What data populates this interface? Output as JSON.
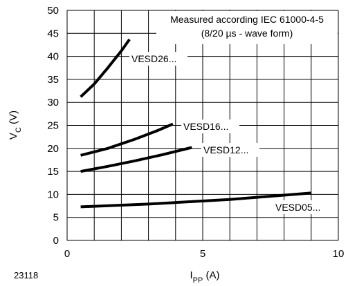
{
  "figure_id": "23118",
  "chart_data": {
    "type": "line",
    "annotation": [
      "Measured according IEC 61000-4-5",
      "(8/20 µs - wave form)"
    ],
    "xlabel": {
      "main": "I",
      "sub": "PP",
      "unit": " (A)"
    },
    "ylabel": {
      "main": "V",
      "sub": "C",
      "unit": " (V)"
    },
    "xlim": [
      0,
      10
    ],
    "ylim": [
      0,
      50
    ],
    "xticks": [
      0,
      5,
      10
    ],
    "yticks": [
      0,
      5,
      10,
      15,
      20,
      25,
      30,
      35,
      40,
      45,
      50
    ],
    "grid": true,
    "series": [
      {
        "name": "VESD26...",
        "x": [
          0.5,
          1.0,
          1.5,
          2.0,
          2.3
        ],
        "y": [
          31.2,
          34.0,
          37.5,
          41.2,
          43.7
        ]
      },
      {
        "name": "VESD16...",
        "x": [
          0.5,
          1.5,
          2.5,
          3.3,
          3.9
        ],
        "y": [
          18.5,
          20.0,
          22.0,
          23.8,
          25.3
        ]
      },
      {
        "name": "VESD12...",
        "x": [
          0.5,
          1.5,
          2.5,
          3.5,
          4.6
        ],
        "y": [
          15.0,
          16.1,
          17.3,
          18.6,
          20.2
        ]
      },
      {
        "name": "VESD05...",
        "x": [
          0.5,
          3.0,
          6.0,
          9.0
        ],
        "y": [
          7.3,
          7.9,
          8.9,
          10.3
        ]
      }
    ]
  }
}
